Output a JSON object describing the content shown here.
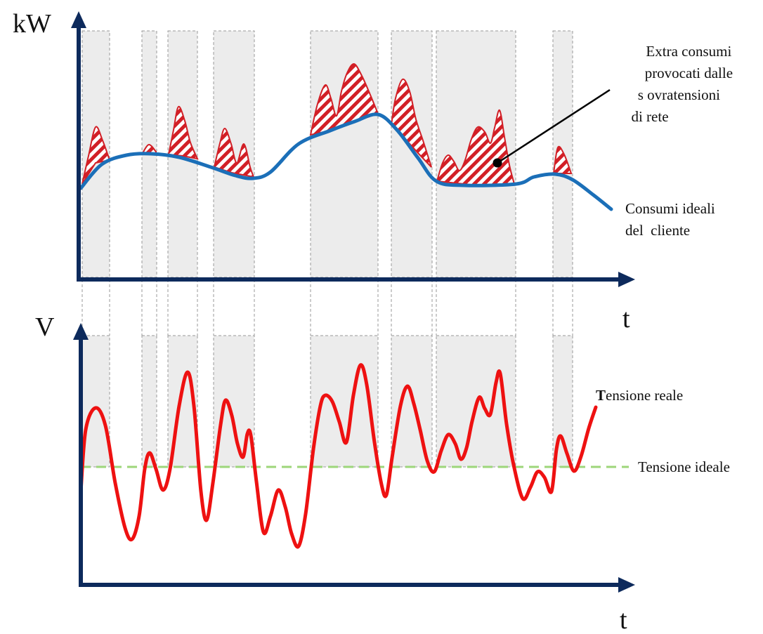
{
  "labels": {
    "top_y_axis": "kW",
    "top_x_axis": "t",
    "bottom_y_axis": "V",
    "bottom_x_axis": "t",
    "extra_consumption": [
      "Extra consumi",
      "provocati dalle",
      "s ovratensioni",
      "di rete"
    ],
    "ideal_consumption": [
      "Consumi ideali",
      "del  cliente"
    ],
    "real_voltage_bold": "T",
    "real_voltage_rest": "ensione reale",
    "ideal_voltage": "Tensione ideale"
  },
  "colors": {
    "axis": "#0d2a5c",
    "ideal_consumption": "#1b6fb8",
    "real_voltage": "#ee1111",
    "ideal_voltage": "#9dd67a",
    "overvoltage_band": "#ececec",
    "extra_hatch": "#d21f26"
  }
}
